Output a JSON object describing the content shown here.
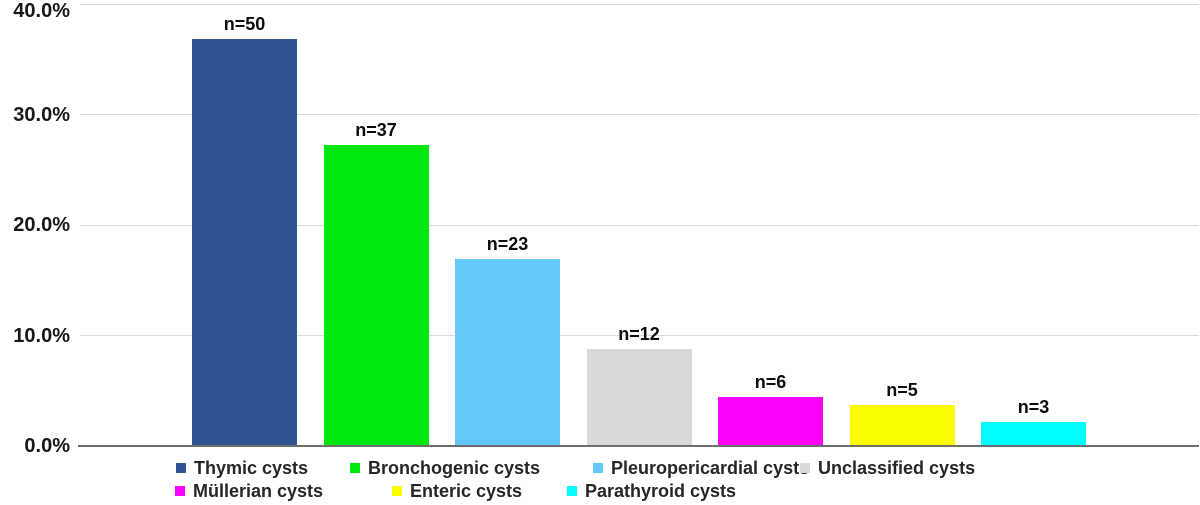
{
  "chart_data": {
    "type": "bar",
    "title": "",
    "xlabel": "",
    "ylabel": "",
    "ylim": [
      0,
      40
    ],
    "grid": true,
    "legend_position": "bottom",
    "categories": [
      "Thymic cysts",
      "Bronchogenic cysts",
      "Pleuropericardial cysts",
      "Unclassified cysts",
      "Müllerian cysts",
      "Enteric cysts",
      "Parathyroid cysts"
    ],
    "counts": [
      50,
      37,
      23,
      12,
      6,
      5,
      3
    ],
    "values_percent": [
      36.8,
      27.2,
      16.9,
      8.8,
      4.4,
      3.7,
      2.2
    ],
    "bar_labels": [
      "n=50",
      "n=37",
      "n=23",
      "n=12",
      "n=6",
      "n=5",
      "n=3"
    ],
    "bar_colors": [
      "#2F5597",
      "#00E80B",
      "#63C7F7",
      "#D9D9D9",
      "#FB00FB",
      "#FCFC00",
      "#00FDFD"
    ],
    "y_ticks": [
      {
        "label": "40.0%",
        "value": 40
      },
      {
        "label": "30.0%",
        "value": 30
      },
      {
        "label": "20.0%",
        "value": 20
      },
      {
        "label": "10.0%",
        "value": 10
      },
      {
        "label": "0.0%",
        "value": 0
      }
    ],
    "legend_rows": [
      [
        "Thymic cysts",
        "Bronchogenic cysts",
        "Pleuropericardial cysts",
        "Unclassified cysts"
      ],
      [
        "Müllerian cysts",
        "Enteric cysts",
        "Parathyroid cysts"
      ]
    ]
  }
}
